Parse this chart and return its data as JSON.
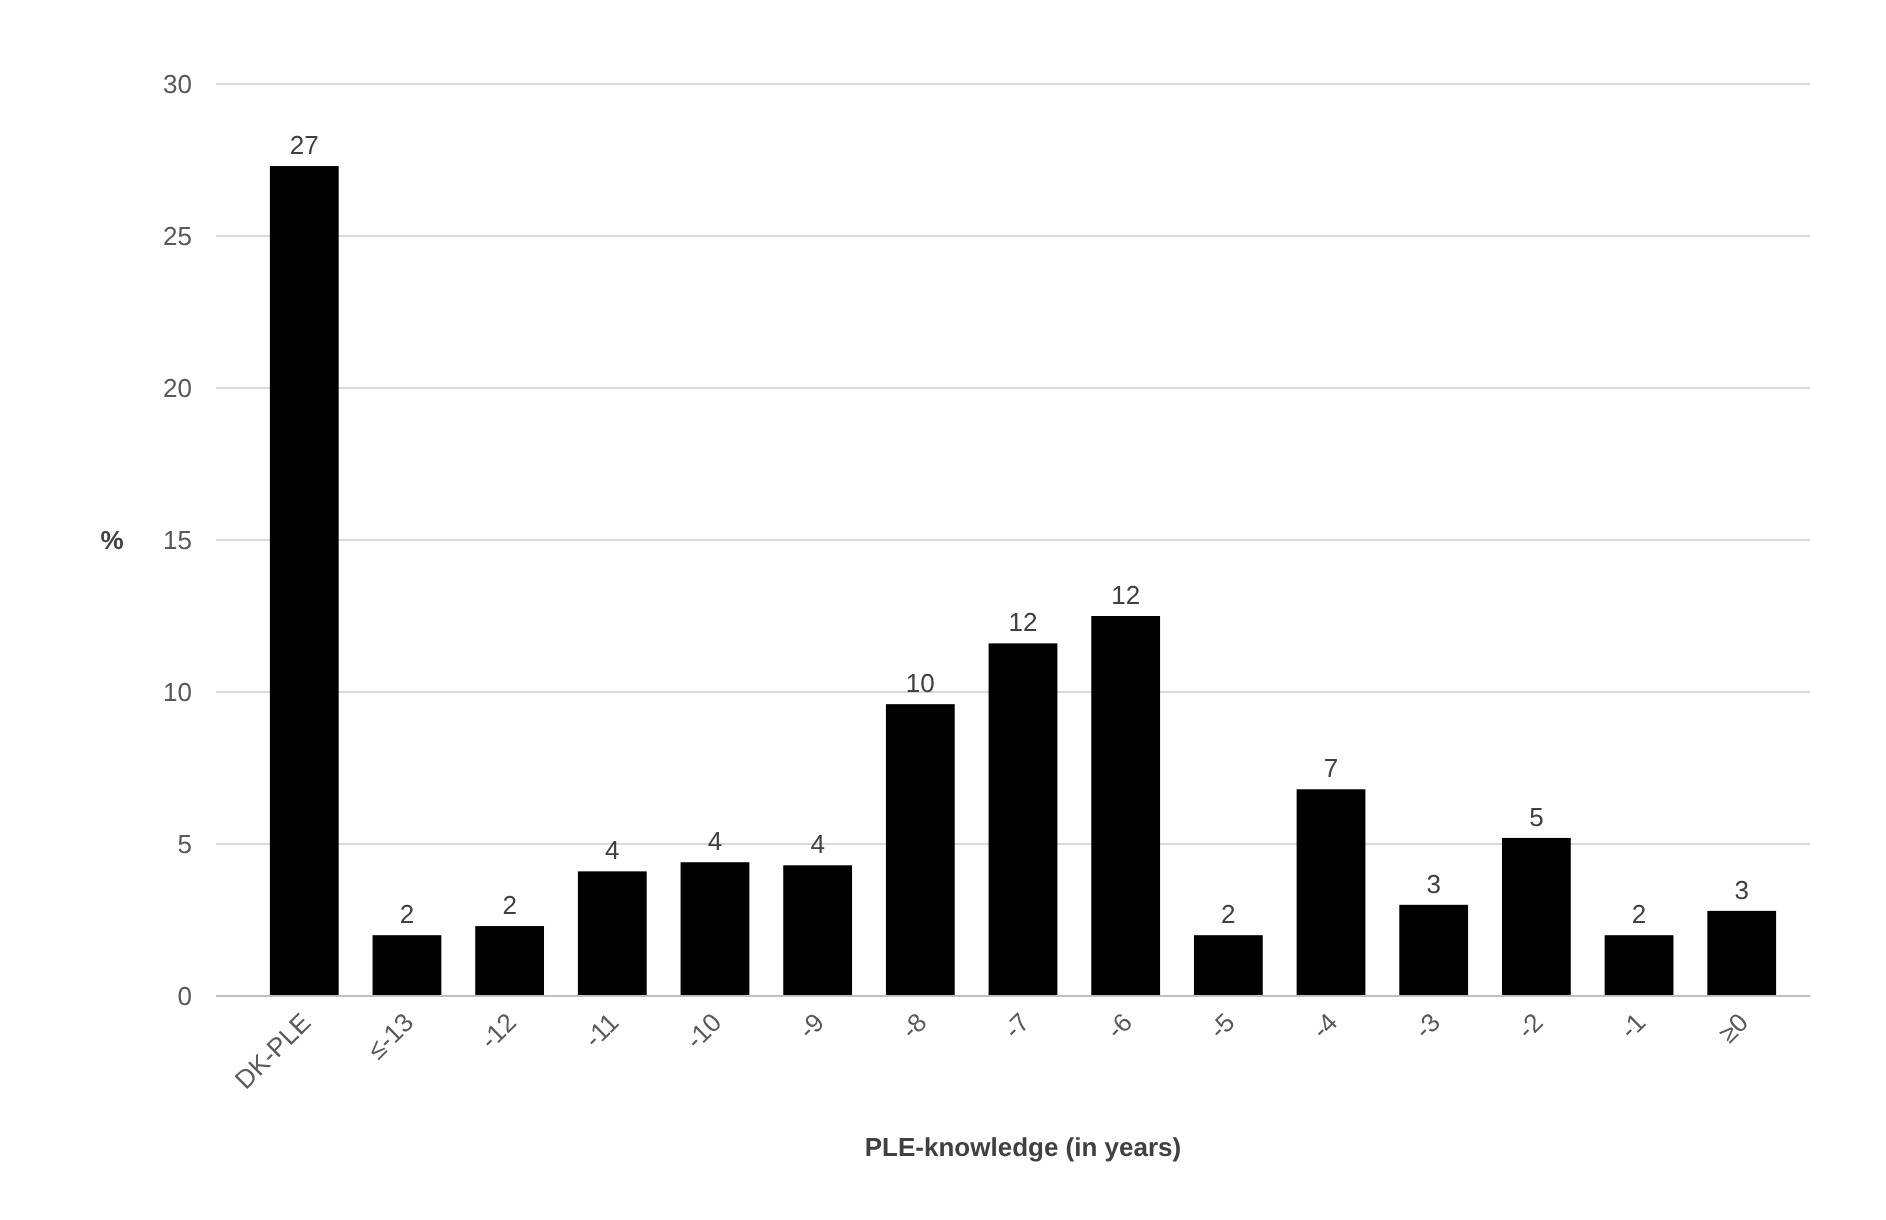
{
  "chart_data": {
    "type": "bar",
    "xlabel": "PLE-knowledge (in years)",
    "ylabel": "%",
    "categories": [
      "DK-PLE",
      "≤-13",
      "-12",
      "-11",
      "-10",
      "-9",
      "-8",
      "-7",
      "-6",
      "-5",
      "-4",
      "-3",
      "-2",
      "-1",
      "≥0"
    ],
    "values": [
      27.3,
      2.0,
      2.3,
      4.1,
      4.4,
      4.3,
      9.6,
      11.6,
      12.5,
      2.0,
      6.8,
      3.0,
      5.2,
      2.0,
      2.8
    ],
    "value_labels": [
      "27",
      "2",
      "2",
      "4",
      "4",
      "4",
      "10",
      "12",
      "12",
      "2",
      "7",
      "3",
      "5",
      "2",
      "3"
    ],
    "color": "#000000",
    "ylim": [
      0,
      30
    ],
    "yticks": [
      0,
      5,
      10,
      15,
      20,
      25,
      30
    ],
    "grid": "y"
  }
}
